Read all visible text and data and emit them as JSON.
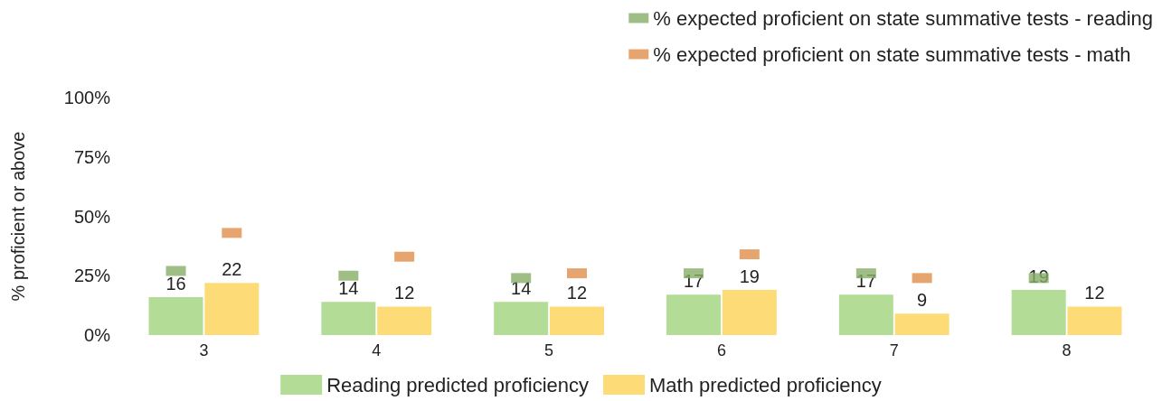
{
  "chart_data": {
    "type": "bar",
    "ylabel": "% proficient or above",
    "categories": [
      "3",
      "4",
      "5",
      "6",
      "7",
      "8"
    ],
    "ylim": [
      0,
      100
    ],
    "yticks": [
      {
        "value": 0,
        "label": "0%"
      },
      {
        "value": 25,
        "label": "25%"
      },
      {
        "value": 50,
        "label": "50%"
      },
      {
        "value": 75,
        "label": "75%"
      },
      {
        "value": 100,
        "label": "100%"
      }
    ],
    "grid": false,
    "legend": "top right",
    "marker": "square",
    "series": [
      {
        "name": "Reading predicted proficiency",
        "color": "#b3dc97",
        "values": [
          16,
          14,
          14,
          17,
          17,
          19
        ],
        "value_labels": [
          "16",
          "14",
          "14",
          "17",
          "17",
          "19"
        ]
      },
      {
        "name": "Math predicted proficiency",
        "color": "#fddc78",
        "values": [
          22,
          12,
          12,
          19,
          9,
          12
        ],
        "value_labels": [
          "22",
          "12",
          "12",
          "19",
          "9",
          "12"
        ]
      },
      {
        "name": "% expected proficient on state summative tests - reading",
        "type": "scatter",
        "color": "#86ae66",
        "values": [
          27,
          25,
          24,
          26,
          26,
          24
        ]
      },
      {
        "name": "% expected proficient on state summative tests - math",
        "type": "scatter",
        "color": "#e08f4a",
        "values": [
          43,
          33,
          26,
          34,
          24,
          null
        ]
      }
    ]
  }
}
